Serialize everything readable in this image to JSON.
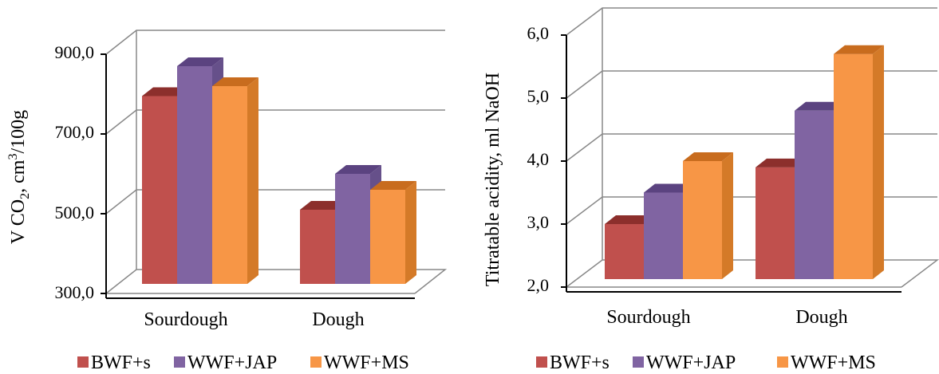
{
  "colors": {
    "series_front": [
      "#c0504d",
      "#8064a2",
      "#f79646"
    ],
    "series_top": [
      "#8c2f2c",
      "#5b4380",
      "#c86c1e"
    ],
    "series_side": [
      "#9b3a37",
      "#66508a",
      "#d47a28"
    ],
    "grid": "#888888",
    "axis": "#000000"
  },
  "chart_data": [
    {
      "type": "bar",
      "style": "3d-clustered",
      "categories": [
        "Sourdough",
        "Dough"
      ],
      "series": [
        {
          "name": "BWF+s",
          "values": [
            795,
            510
          ]
        },
        {
          "name": "WWF+JAP",
          "values": [
            870,
            600
          ]
        },
        {
          "name": "WWF+MS",
          "values": [
            820,
            560
          ]
        }
      ],
      "ylabel_main": "V CO",
      "ylabel_sub": "2",
      "ylabel_rest": ", cm",
      "ylabel_sup": "3",
      "ylabel_end": "/100g",
      "yticks": [
        "300,0",
        "500,0",
        "700,0",
        "900,0"
      ],
      "ylim": [
        300,
        900
      ],
      "grid": true,
      "legend_position": "bottom"
    },
    {
      "type": "bar",
      "style": "3d-clustered",
      "categories": [
        "Sourdough",
        "Dough"
      ],
      "series": [
        {
          "name": "BWF+s",
          "values": [
            3.0,
            3.9
          ]
        },
        {
          "name": "WWF+JAP",
          "values": [
            3.5,
            4.8
          ]
        },
        {
          "name": "WWF+MS",
          "values": [
            4.0,
            5.7
          ]
        }
      ],
      "ylabel": "Titratable  acidity, ml NaOH",
      "yticks": [
        "2,0",
        "3,0",
        "4,0",
        "5,0",
        "6,0"
      ],
      "ylim": [
        2,
        6
      ],
      "grid": true,
      "legend_position": "bottom"
    }
  ]
}
